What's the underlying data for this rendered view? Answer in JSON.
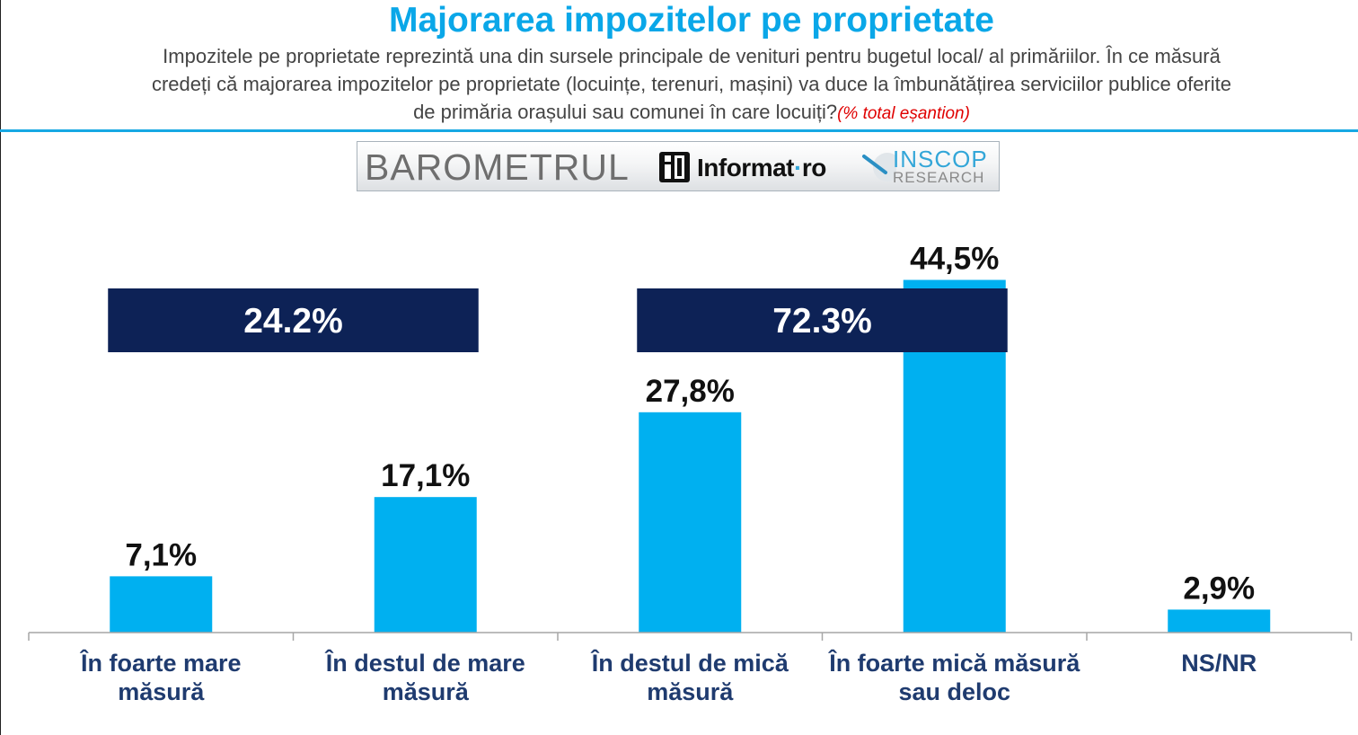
{
  "title": "Majorarea impozitelor pe proprietate",
  "subtitle": {
    "line1": "Impozitele pe proprietate reprezintă una din sursele principale de venituri pentru bugetul local/ al primăriilor. În ce măsură",
    "line2": "credeți că majorarea impozitelor pe proprietate (locuințe, terenuri, mașini) va duce la îmbunătățirea serviciilor publice oferite",
    "line3": "de primăria orașului sau comunei în care locuiți?",
    "note": "(% total eșantion)"
  },
  "logo": {
    "barometru": "BAROMETRUL",
    "informat_main": "Informat",
    "informat_dot": "·",
    "informat_tld": "ro",
    "inscop": "INSCOP",
    "inscop_sub": "RESEARCH"
  },
  "colors": {
    "title": "#0aa7e8",
    "bar": "#00b0f0",
    "group_box": "#0d2256",
    "axis_label": "#1f3b6f",
    "rule": "#17a8e3"
  },
  "chart_data": {
    "type": "bar",
    "title": "Majorarea impozitelor pe proprietate",
    "xlabel": "",
    "ylabel": "",
    "ylim": [
      0,
      50
    ],
    "categories": [
      [
        "În foarte mare",
        "măsură"
      ],
      [
        "În destul de mare",
        "măsură"
      ],
      [
        "În destul de mică",
        "măsură"
      ],
      [
        "În foarte mică măsură",
        "sau deloc"
      ],
      [
        "NS/NR"
      ]
    ],
    "values": [
      7.1,
      17.1,
      27.8,
      44.5,
      2.9
    ],
    "value_labels": [
      "7,1%",
      "17,1%",
      "27,8%",
      "44,5%",
      "2,9%"
    ],
    "groups": [
      {
        "label": "24.2%",
        "value": 24.2,
        "from": 0,
        "to": 1
      },
      {
        "label": "72.3%",
        "value": 72.3,
        "from": 2,
        "to": 3
      }
    ]
  }
}
